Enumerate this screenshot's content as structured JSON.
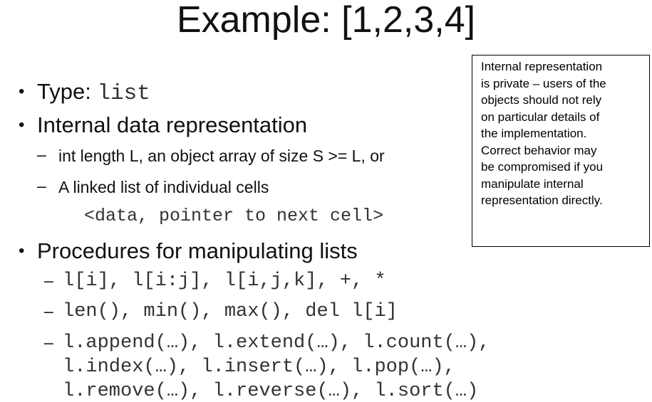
{
  "title": "Example: [1,2,3,4]",
  "bullets": {
    "type_label": "Type: ",
    "type_code": "list",
    "internal": "Internal data representation",
    "procedures": "Procedures for manipulating lists"
  },
  "internal_sub": {
    "item1": "int length L, an object array of size S >= L, or",
    "item2": "A linked list of individual cells",
    "item2_code": "<data, pointer to next cell>"
  },
  "procedures_sub": {
    "line1": "l[i], l[i:j], l[i,j,k], +, *",
    "line2": "len(), min(), max(), del l[i]",
    "line3": "l.append(…), l.extend(…), l.count(…),",
    "line3b": "l.index(…), l.insert(…), l.pop(…),",
    "line3c": "l.remove(…), l.reverse(…), l.sort(…)"
  },
  "note_box": {
    "lines": [
      "Internal representation",
      "is private – users of the",
      "objects should not rely",
      "on particular details of",
      "the implementation.",
      "Correct behavior may",
      "be compromised if you",
      "manipulate internal",
      "representation directly."
    ]
  }
}
